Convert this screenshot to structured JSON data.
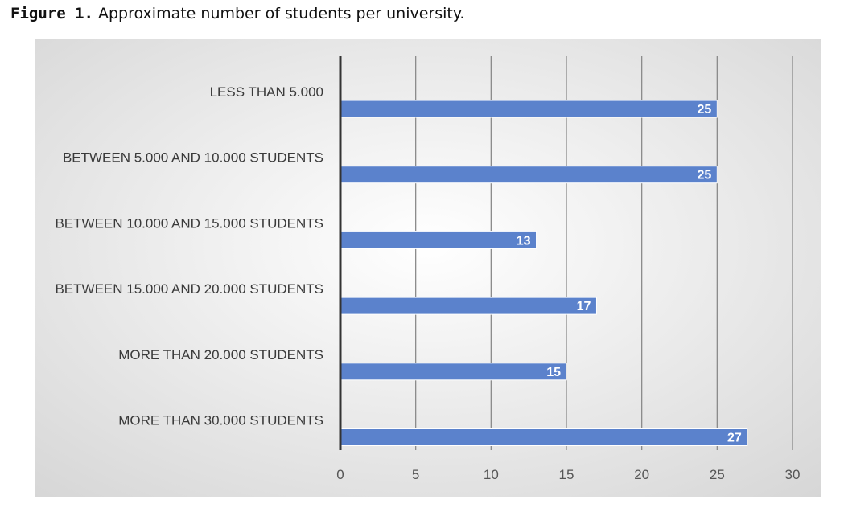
{
  "caption": {
    "prefix": "Figure 1.",
    "text": " Approximate number of students per university."
  },
  "colors": {
    "bar": "#5b82cc",
    "bar_edge": "#ffffff",
    "axis": "#333333",
    "grid": "#8a8a8a"
  },
  "chart_data": {
    "type": "bar",
    "orientation": "horizontal",
    "categories": [
      "LESS THAN 5.000",
      "BETWEEN 5.000 AND 10.000 STUDENTS",
      "BETWEEN 10.000 AND 15.000 STUDENTS",
      "BETWEEN 15.000 AND 20.000 STUDENTS",
      "MORE THAN 20.000 STUDENTS",
      "MORE THAN 30.000 STUDENTS"
    ],
    "values": [
      25,
      25,
      13,
      17,
      15,
      27
    ],
    "xlim": [
      0,
      30
    ],
    "xticks": [
      0,
      5,
      10,
      15,
      20,
      25,
      30
    ],
    "grid": true,
    "data_labels": true
  }
}
